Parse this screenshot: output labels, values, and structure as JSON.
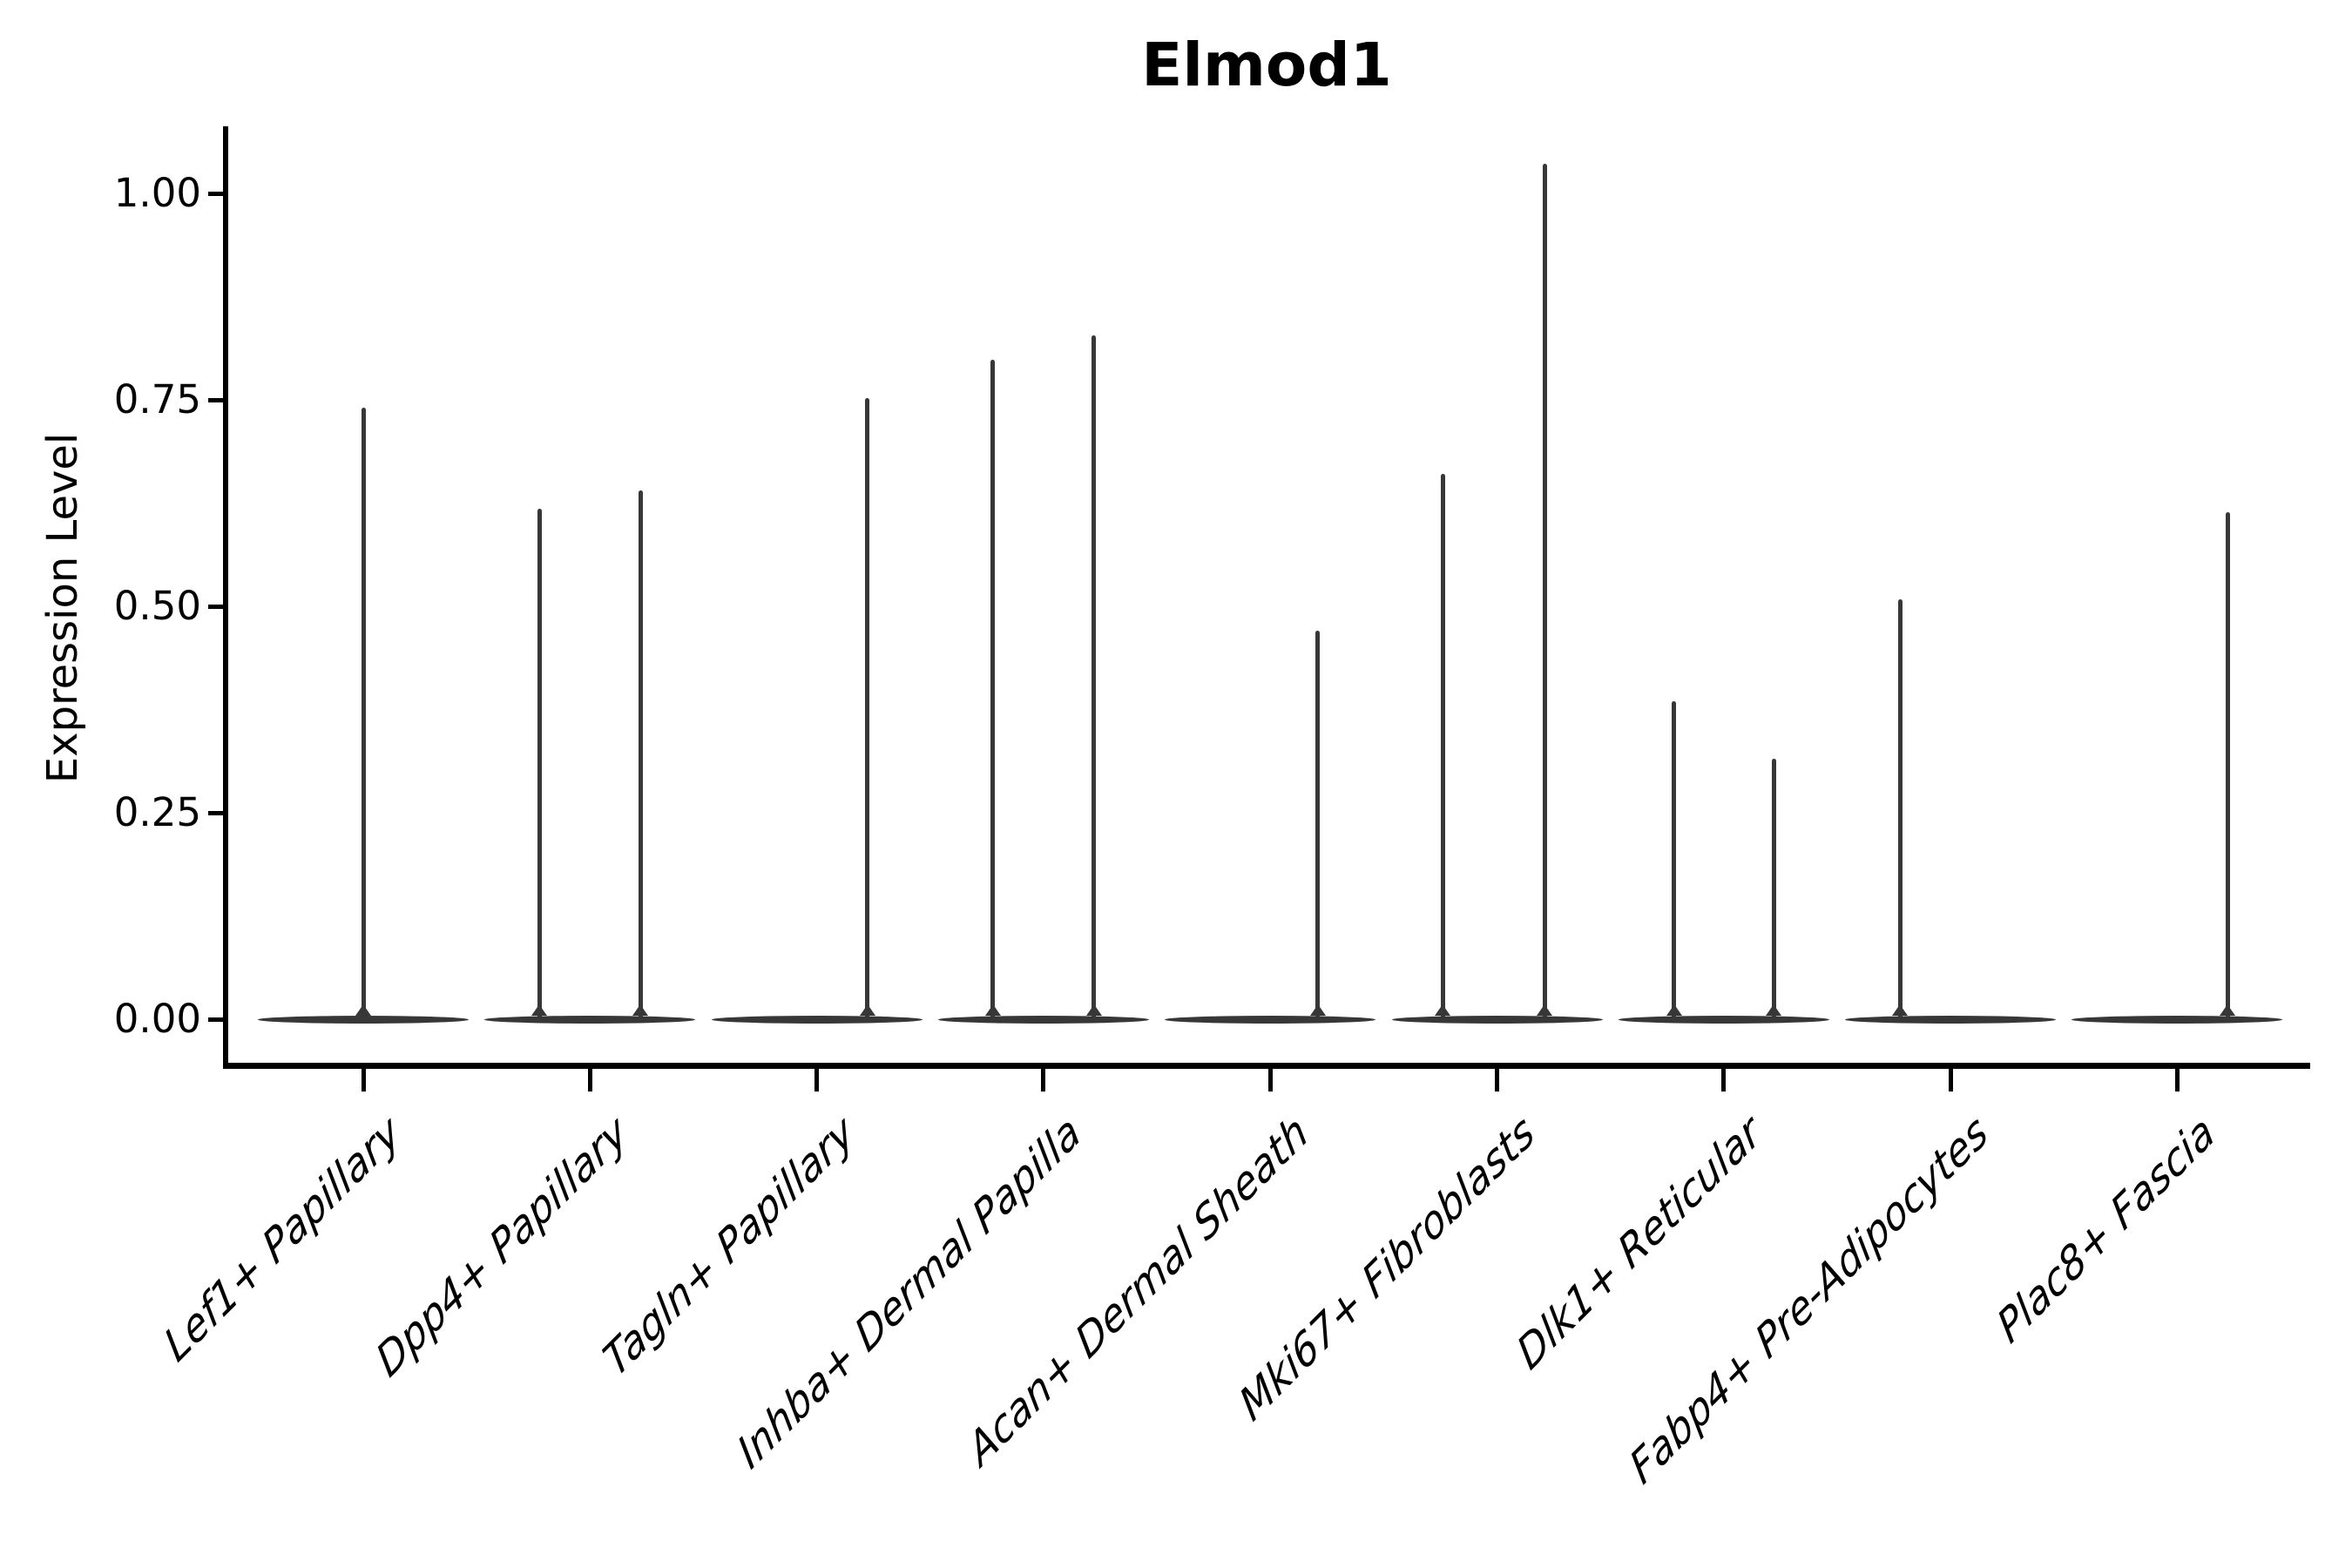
{
  "chart_data": {
    "type": "violin",
    "title": "Elmod1",
    "ylabel": "Expression Level",
    "xlabel": "",
    "grid": false,
    "legend": false,
    "background_color": "#ffffff",
    "axis_color": "#000000",
    "violin_color": "#373737",
    "ylim": [
      -0.055,
      1.08
    ],
    "y_ticks": [
      {
        "label": "0.00",
        "value": 0.0
      },
      {
        "label": "0.25",
        "value": 0.25
      },
      {
        "label": "0.50",
        "value": 0.5
      },
      {
        "label": "0.75",
        "value": 0.75
      },
      {
        "label": "1.00",
        "value": 1.0
      }
    ],
    "categories": [
      {
        "label": "Lef1+ Papillary",
        "baseline_value": 0.0,
        "spikes": [
          {
            "offset": 0.0,
            "value": 0.74
          }
        ]
      },
      {
        "label": "Dpp4+ Papillary",
        "baseline_value": 0.0,
        "spikes": [
          {
            "offset": -0.223,
            "value": 0.618
          },
          {
            "offset": 0.223,
            "value": 0.64
          }
        ]
      },
      {
        "label": "Tagln+ Papillary",
        "baseline_value": 0.0,
        "spikes": [
          {
            "offset": 0.223,
            "value": 0.752
          }
        ]
      },
      {
        "label": "Inhba+ Dermal Papilla",
        "baseline_value": 0.0,
        "spikes": [
          {
            "offset": -0.223,
            "value": 0.798
          },
          {
            "offset": 0.223,
            "value": 0.828
          }
        ]
      },
      {
        "label": "Acan+ Dermal Sheath",
        "baseline_value": 0.0,
        "spikes": [
          {
            "offset": 0.21,
            "value": 0.47
          }
        ]
      },
      {
        "label": "Mki67+ Fibroblasts",
        "baseline_value": 0.0,
        "spikes": [
          {
            "offset": -0.24,
            "value": 0.66
          },
          {
            "offset": 0.21,
            "value": 1.036
          }
        ]
      },
      {
        "label": "Dlk1+ Reticular",
        "baseline_value": 0.0,
        "spikes": [
          {
            "offset": -0.22,
            "value": 0.385
          },
          {
            "offset": 0.22,
            "value": 0.315
          }
        ]
      },
      {
        "label": "Fabp4+ Pre-Adipocytes",
        "baseline_value": 0.0,
        "spikes": [
          {
            "offset": -0.223,
            "value": 0.508
          }
        ]
      },
      {
        "label": "Plac8+ Fascia",
        "baseline_value": 0.0,
        "spikes": [
          {
            "offset": 0.223,
            "value": 0.614
          }
        ]
      }
    ]
  }
}
